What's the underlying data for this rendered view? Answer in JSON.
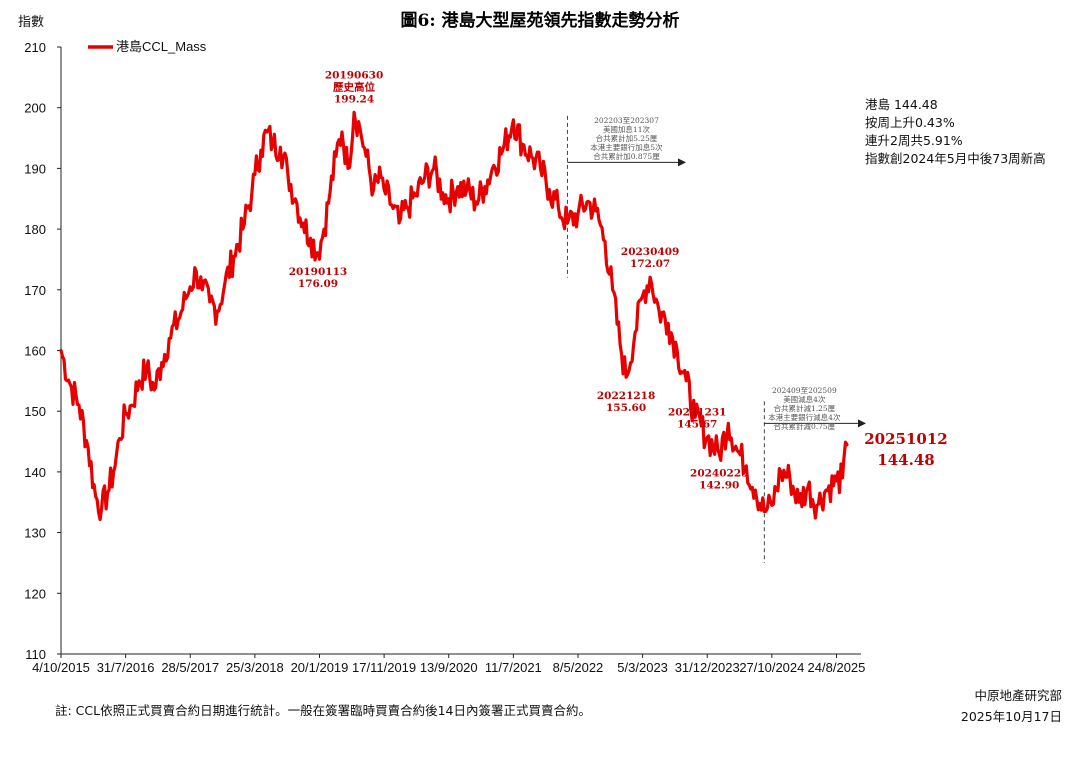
{
  "chart_data": {
    "type": "line",
    "title": "圖6: 港島大型屋苑領先指數走勢分析",
    "ylabel": "指數",
    "ylim": [
      110,
      210
    ],
    "yticks": [
      110,
      120,
      130,
      140,
      150,
      160,
      170,
      180,
      190,
      200,
      210
    ],
    "xticks": [
      "4/10/2015",
      "31/7/2016",
      "28/5/2017",
      "25/3/2018",
      "20/1/2019",
      "17/11/2019",
      "13/9/2020",
      "11/7/2021",
      "8/5/2022",
      "5/3/2023",
      "31/12/2023",
      "27/10/2024",
      "24/8/2025"
    ],
    "x_start": "2015-10-04",
    "legend": {
      "position": "top-left",
      "label": "港島CCL_Mass"
    },
    "color": "#e60000",
    "series": [
      {
        "name": "港島CCL_Mass",
        "points": [
          [
            "2015-10-04",
            160.0
          ],
          [
            "2015-11-15",
            154.5
          ],
          [
            "2015-12-27",
            151.0
          ],
          [
            "2016-02-07",
            144.0
          ],
          [
            "2016-03-13",
            136.0
          ],
          [
            "2016-04-10",
            134.0
          ],
          [
            "2016-05-08",
            136.5
          ],
          [
            "2016-06-05",
            140.0
          ],
          [
            "2016-07-03",
            145.5
          ],
          [
            "2016-07-31",
            149.5
          ],
          [
            "2016-08-28",
            151.0
          ],
          [
            "2016-10-02",
            155.0
          ],
          [
            "2016-11-06",
            157.0
          ],
          [
            "2016-12-11",
            153.5
          ],
          [
            "2017-01-15",
            158.0
          ],
          [
            "2017-02-19",
            162.0
          ],
          [
            "2017-04-02",
            165.0
          ],
          [
            "2017-05-07",
            168.5
          ],
          [
            "2017-05-28",
            170.5
          ],
          [
            "2017-06-25",
            173.0
          ],
          [
            "2017-07-23",
            170.0
          ],
          [
            "2017-08-27",
            168.0
          ],
          [
            "2017-10-01",
            166.5
          ],
          [
            "2017-11-05",
            171.0
          ],
          [
            "2017-12-17",
            175.5
          ],
          [
            "2018-01-28",
            180.0
          ],
          [
            "2018-03-11",
            186.0
          ],
          [
            "2018-03-25",
            189.0
          ],
          [
            "2018-04-22",
            193.0
          ],
          [
            "2018-05-20",
            196.0
          ],
          [
            "2018-06-17",
            194.0
          ],
          [
            "2018-07-22",
            193.5
          ],
          [
            "2018-08-26",
            189.0
          ],
          [
            "2018-09-30",
            185.0
          ],
          [
            "2018-11-04",
            181.0
          ],
          [
            "2018-12-09",
            178.5
          ],
          [
            "2019-01-13",
            176.09
          ],
          [
            "2019-02-10",
            180.0
          ],
          [
            "2019-03-10",
            186.0
          ],
          [
            "2019-04-07",
            192.0
          ],
          [
            "2019-05-05",
            196.0
          ],
          [
            "2019-06-02",
            190.0
          ],
          [
            "2019-06-30",
            199.24
          ],
          [
            "2019-07-28",
            196.5
          ],
          [
            "2019-08-25",
            192.0
          ],
          [
            "2019-09-29",
            186.5
          ],
          [
            "2019-11-03",
            188.5
          ],
          [
            "2019-11-17",
            186.5
          ],
          [
            "2019-12-22",
            184.0
          ],
          [
            "2020-01-26",
            181.0
          ],
          [
            "2020-03-01",
            183.5
          ],
          [
            "2020-04-12",
            185.5
          ],
          [
            "2020-05-24",
            188.5
          ],
          [
            "2020-07-05",
            190.0
          ],
          [
            "2020-08-16",
            186.0
          ],
          [
            "2020-09-13",
            185.0
          ],
          [
            "2020-10-25",
            187.0
          ],
          [
            "2020-12-06",
            186.5
          ],
          [
            "2021-01-17",
            184.5
          ],
          [
            "2021-02-28",
            187.0
          ],
          [
            "2021-04-11",
            190.5
          ],
          [
            "2021-05-23",
            193.0
          ],
          [
            "2021-07-11",
            198.0
          ],
          [
            "2021-08-22",
            194.0
          ],
          [
            "2021-10-03",
            192.0
          ],
          [
            "2021-11-14",
            190.0
          ],
          [
            "2021-12-26",
            186.5
          ],
          [
            "2022-02-06",
            183.5
          ],
          [
            "2022-03-20",
            181.0
          ],
          [
            "2022-05-08",
            182.5
          ],
          [
            "2022-06-19",
            184.5
          ],
          [
            "2022-07-31",
            183.0
          ],
          [
            "2022-09-11",
            178.0
          ],
          [
            "2022-10-16",
            170.0
          ],
          [
            "2022-11-20",
            161.0
          ],
          [
            "2022-12-18",
            155.6
          ],
          [
            "2023-01-29",
            163.0
          ],
          [
            "2023-03-05",
            169.0
          ],
          [
            "2023-04-09",
            172.07
          ],
          [
            "2023-05-21",
            166.5
          ],
          [
            "2023-07-02",
            164.5
          ],
          [
            "2023-08-13",
            160.0
          ],
          [
            "2023-09-24",
            155.0
          ],
          [
            "2023-11-05",
            149.0
          ],
          [
            "2023-12-31",
            145.67
          ],
          [
            "2024-02-25",
            142.9
          ],
          [
            "2024-04-07",
            148.0
          ],
          [
            "2024-05-19",
            143.5
          ],
          [
            "2024-06-30",
            141.0
          ],
          [
            "2024-08-11",
            137.0
          ],
          [
            "2024-09-22",
            133.5
          ],
          [
            "2024-10-27",
            134.5
          ],
          [
            "2024-12-08",
            140.0
          ],
          [
            "2025-01-19",
            139.0
          ],
          [
            "2025-03-02",
            135.0
          ],
          [
            "2025-04-13",
            137.5
          ],
          [
            "2025-05-25",
            134.5
          ],
          [
            "2025-07-06",
            137.0
          ],
          [
            "2025-08-24",
            138.5
          ],
          [
            "2025-09-21",
            139.0
          ],
          [
            "2025-10-12",
            144.48
          ]
        ]
      }
    ],
    "annotations": [
      {
        "lines": [
          "20190630",
          "歷史高位",
          "199.24"
        ],
        "date": "2019-06-30",
        "value": 199.24,
        "pos": "above"
      },
      {
        "lines": [
          "20190113",
          "176.09"
        ],
        "date": "2019-01-13",
        "value": 176.09,
        "pos": "below"
      },
      {
        "lines": [
          "20230409",
          "172.07"
        ],
        "date": "2023-04-09",
        "value": 172.07,
        "pos": "above"
      },
      {
        "lines": [
          "20221218",
          "155.60"
        ],
        "date": "2022-12-18",
        "value": 155.6,
        "pos": "below"
      },
      {
        "lines": [
          "20231231",
          "145.67"
        ],
        "date": "2023-12-31",
        "value": 145.67,
        "pos": "above-left"
      },
      {
        "lines": [
          "20240225",
          "142.90"
        ],
        "date": "2024-02-25",
        "value": 142.9,
        "pos": "below"
      }
    ],
    "policy_notes": [
      {
        "date": "2022-03-20",
        "lines": [
          "202203至202307",
          "美國加息11次",
          "合共累計加5.25厘",
          "本港主要銀行加息5次",
          "合共累計加0.875厘"
        ]
      },
      {
        "date": "2024-09-22",
        "lines": [
          "202409至202509",
          "美國減息4次",
          "合共累計減1.25厘",
          "本港主要銀行減息4次",
          "合共累計減0.75厘"
        ]
      }
    ],
    "latest": {
      "date_label": "20251012",
      "value_label": "144.48"
    },
    "side_notes": [
      "港島 144.48",
      "按周上升0.43%",
      "連升2周共5.91%",
      "指數創2024年5月中後73周新高"
    ]
  },
  "footer": {
    "note": "註: CCL依照正式買賣合約日期進行統計。一般在簽署臨時買賣合約後14日內簽署正式買賣合約。",
    "source": "中原地產研究部",
    "date": "2025年10月17日"
  }
}
